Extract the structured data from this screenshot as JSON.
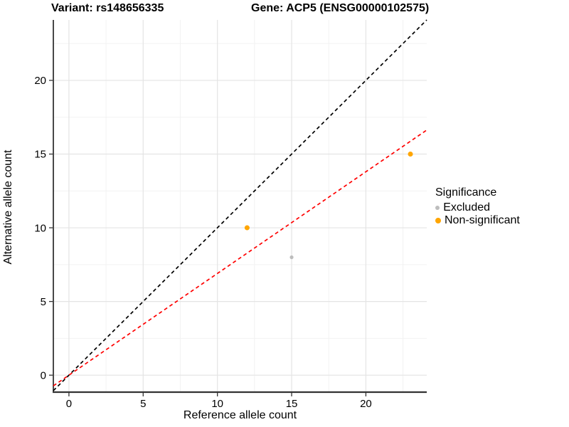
{
  "chart_data": {
    "type": "scatter",
    "title_left": "Variant: rs148656335",
    "title_right": "Gene: ACP5 (ENSG00000102575)",
    "xlabel": "Reference allele count",
    "ylabel": "Alternative allele count",
    "xlim": [
      -1.05,
      24.1
    ],
    "ylim": [
      -1.15,
      24.1
    ],
    "xticks": [
      0,
      5,
      10,
      15,
      20
    ],
    "yticks": [
      0,
      5,
      10,
      15,
      20
    ],
    "xticks_minor": [
      2.5,
      7.5,
      12.5,
      17.5,
      22.5
    ],
    "yticks_minor": [
      2.5,
      7.5,
      12.5,
      17.5,
      22.5
    ],
    "series": [
      {
        "name": "Excluded",
        "color": "#BDBDBD",
        "radius": 2.6,
        "points": [
          [
            15,
            8
          ]
        ]
      },
      {
        "name": "Non-significant",
        "color": "#FFA500",
        "radius": 3.5,
        "points": [
          [
            12,
            10
          ],
          [
            23,
            15
          ]
        ]
      }
    ],
    "lines": [
      {
        "name": "identity-line",
        "slope": 1.0,
        "intercept": 0,
        "color": "#000000",
        "dash": "5,4",
        "width": 1.7
      },
      {
        "name": "regression-line",
        "slope": 0.69,
        "intercept": 0,
        "color": "#FF0000",
        "dash": "5,4",
        "width": 1.7
      }
    ],
    "legend": {
      "title": "Significance",
      "position": "right"
    },
    "colors": {
      "grid_major": "#E4E4E4",
      "grid_minor": "#F2F2F2",
      "axis_line": "#333333",
      "tick_mark": "#333333",
      "text": "#000000"
    },
    "grid": "on"
  }
}
